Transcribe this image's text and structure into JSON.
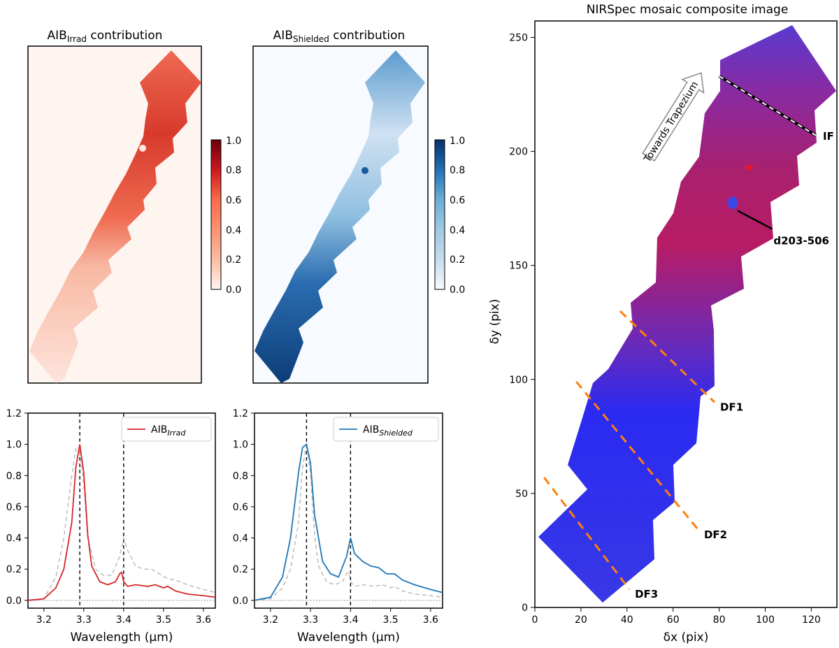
{
  "chart_data": [
    {
      "type": "heatmap",
      "title_main": "AIB",
      "title_sub": "Irrad",
      "title_rest": " contribution",
      "colormap": "Reds",
      "colorbar": {
        "range": [
          0.0,
          1.0
        ],
        "ticks": [
          "0.0",
          "0.2",
          "0.4",
          "0.6",
          "0.8",
          "1.0"
        ]
      },
      "gradient": {
        "lo": 0.08,
        "hi": 0.95
      }
    },
    {
      "type": "heatmap",
      "title_main": "AIB",
      "title_sub": "Shielded",
      "title_rest": " contribution",
      "colormap": "Blues",
      "colorbar": {
        "range": [
          0.0,
          1.0
        ],
        "ticks": [
          "0.0",
          "0.2",
          "0.4",
          "0.6",
          "0.8",
          "1.0"
        ]
      },
      "gradient": {
        "lo": 0.12,
        "hi": 0.92
      }
    },
    {
      "type": "line",
      "xlabel": "Wavelength (μm)",
      "xlim": [
        3.16,
        3.63
      ],
      "ylim": [
        -0.05,
        1.2
      ],
      "xticks": [
        "3.2",
        "3.3",
        "3.4",
        "3.5",
        "3.6"
      ],
      "yticks": [
        "0.0",
        "0.2",
        "0.4",
        "0.6",
        "0.8",
        "1.0",
        "1.2"
      ],
      "vlines": [
        3.29,
        3.4
      ],
      "legend_main": "AIB",
      "legend_sub": "Irrad",
      "series": [
        {
          "name": "AIB_Irrad",
          "color": "#d62728",
          "x": [
            3.16,
            3.2,
            3.23,
            3.25,
            3.27,
            3.28,
            3.29,
            3.3,
            3.31,
            3.32,
            3.34,
            3.36,
            3.38,
            3.39,
            3.395,
            3.4,
            3.41,
            3.43,
            3.46,
            3.48,
            3.5,
            3.51,
            3.53,
            3.56,
            3.6,
            3.63
          ],
          "y": [
            0.0,
            0.01,
            0.08,
            0.2,
            0.5,
            0.85,
            1.0,
            0.82,
            0.42,
            0.22,
            0.12,
            0.1,
            0.12,
            0.17,
            0.18,
            0.12,
            0.09,
            0.1,
            0.09,
            0.1,
            0.08,
            0.09,
            0.06,
            0.04,
            0.03,
            0.02
          ]
        },
        {
          "name": "reference",
          "color": "#bbbbbb",
          "dashed": true,
          "x": [
            3.16,
            3.2,
            3.23,
            3.25,
            3.27,
            3.28,
            3.29,
            3.3,
            3.31,
            3.33,
            3.35,
            3.37,
            3.39,
            3.4,
            3.41,
            3.43,
            3.45,
            3.47,
            3.49,
            3.51,
            3.53,
            3.56,
            3.6,
            3.63
          ],
          "y": [
            0.0,
            0.01,
            0.15,
            0.4,
            0.8,
            0.97,
            0.95,
            0.75,
            0.4,
            0.2,
            0.16,
            0.16,
            0.28,
            0.4,
            0.32,
            0.22,
            0.2,
            0.2,
            0.17,
            0.14,
            0.13,
            0.1,
            0.07,
            0.05
          ]
        }
      ]
    },
    {
      "type": "line",
      "xlabel": "Wavelength (μm)",
      "xlim": [
        3.16,
        3.63
      ],
      "ylim": [
        -0.05,
        1.2
      ],
      "xticks": [
        "3.2",
        "3.3",
        "3.4",
        "3.5",
        "3.6"
      ],
      "yticks": [
        "0.0",
        "0.2",
        "0.4",
        "0.6",
        "0.8",
        "1.0",
        "1.2"
      ],
      "vlines": [
        3.29,
        3.4
      ],
      "legend_main": "AIB",
      "legend_sub": "Shielded",
      "series": [
        {
          "name": "AIB_Shielded",
          "color": "#1f77b4",
          "x": [
            3.16,
            3.2,
            3.23,
            3.25,
            3.27,
            3.28,
            3.29,
            3.3,
            3.31,
            3.33,
            3.35,
            3.37,
            3.39,
            3.4,
            3.41,
            3.43,
            3.45,
            3.47,
            3.49,
            3.51,
            3.53,
            3.56,
            3.6,
            3.63
          ],
          "y": [
            0.0,
            0.02,
            0.15,
            0.4,
            0.82,
            0.98,
            1.0,
            0.88,
            0.55,
            0.25,
            0.17,
            0.15,
            0.28,
            0.4,
            0.3,
            0.25,
            0.22,
            0.21,
            0.17,
            0.17,
            0.13,
            0.1,
            0.07,
            0.05
          ]
        },
        {
          "name": "reference",
          "color": "#bbbbbb",
          "dashed": true,
          "x": [
            3.16,
            3.2,
            3.23,
            3.25,
            3.27,
            3.28,
            3.29,
            3.3,
            3.31,
            3.32,
            3.34,
            3.36,
            3.38,
            3.39,
            3.395,
            3.4,
            3.41,
            3.43,
            3.46,
            3.48,
            3.5,
            3.51,
            3.53,
            3.56,
            3.6,
            3.63
          ],
          "y": [
            0.0,
            0.01,
            0.08,
            0.2,
            0.5,
            0.85,
            1.0,
            0.82,
            0.42,
            0.22,
            0.12,
            0.1,
            0.12,
            0.17,
            0.18,
            0.12,
            0.09,
            0.1,
            0.09,
            0.1,
            0.08,
            0.09,
            0.06,
            0.04,
            0.03,
            0.02
          ]
        }
      ]
    },
    {
      "type": "heatmap",
      "title": "NIRSpec mosaic composite image",
      "xlabel": "δx (pix)",
      "ylabel": "δy (pix)",
      "xlim": [
        0,
        131
      ],
      "ylim": [
        0,
        257
      ],
      "xticks": [
        0,
        20,
        40,
        60,
        80,
        100,
        120
      ],
      "yticks": [
        0,
        50,
        100,
        150,
        200,
        250
      ],
      "colormap": "red-blue composite",
      "arrow_label": "Towards Trapezium",
      "annotations": [
        {
          "label": "IF",
          "color": "#000000",
          "line": [
            [
              80,
              233
            ],
            [
              122,
              207
            ]
          ]
        },
        {
          "label": "d203-506",
          "color": "#000000",
          "line": [
            [
              88,
              174
            ],
            [
              103,
              166
            ]
          ]
        },
        {
          "label": "DF1",
          "color": "#ff7f0e",
          "line": [
            [
              37,
              130
            ],
            [
              78,
              90
            ]
          ]
        },
        {
          "label": "DF2",
          "color": "#ff7f0e",
          "line": [
            [
              18,
              99
            ],
            [
              71,
              34
            ]
          ]
        },
        {
          "label": "DF3",
          "color": "#ff7f0e",
          "line": [
            [
              4,
              57
            ],
            [
              41,
              8
            ]
          ]
        }
      ]
    }
  ]
}
